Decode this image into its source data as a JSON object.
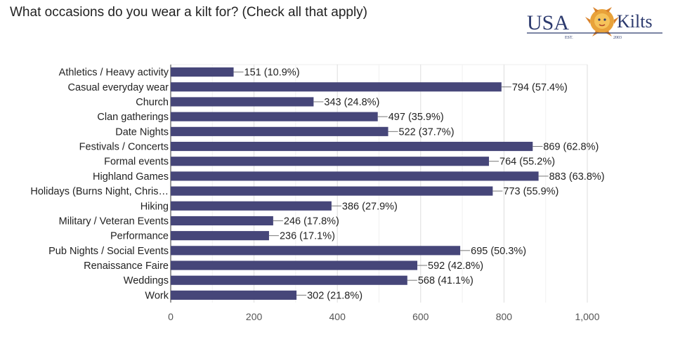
{
  "chart_data": {
    "type": "bar",
    "orientation": "horizontal",
    "title": "What occasions do you wear a kilt for? (Check all that apply)",
    "categories": [
      "Athletics / Heavy activity",
      "Casual everyday wear",
      "Church",
      "Clan gatherings",
      "Date Nights",
      "Festivals / Concerts",
      "Formal events",
      "Highland Games",
      "Holidays (Burns Night, Chris…",
      "Hiking",
      "Military / Veteran Events",
      "Performance",
      "Pub Nights / Social Events",
      "Renaissance Faire",
      "Weddings",
      "Work"
    ],
    "values": [
      151,
      794,
      343,
      497,
      522,
      869,
      764,
      883,
      773,
      386,
      246,
      236,
      695,
      592,
      568,
      302
    ],
    "data_labels": [
      "151 (10.9%)",
      "794 (57.4%)",
      "343 (24.8%)",
      "497 (35.9%)",
      "522 (37.7%)",
      "869 (62.8%)",
      "764 (55.2%)",
      "883 (63.8%)",
      "773 (55.9%)",
      "386 (27.9%)",
      "246 (17.8%)",
      "236 (17.1%)",
      "695 (50.3%)",
      "592 (42.8%)",
      "568 (41.1%)",
      "302 (21.8%)"
    ],
    "xlim": [
      0,
      1000
    ],
    "x_ticks": [
      0,
      200,
      400,
      600,
      800,
      1000
    ],
    "x_tick_labels": [
      "0",
      "200",
      "400",
      "600",
      "800",
      "1,000"
    ],
    "grid": true,
    "bar_color": "#464679",
    "xlabel": "",
    "ylabel": ""
  },
  "logo": {
    "left_text": "USA",
    "right_text": "Kilts",
    "est_text": "EST.",
    "year_text": "2003",
    "color": "#2c3a6e",
    "lion_color": "#e8a23a"
  }
}
